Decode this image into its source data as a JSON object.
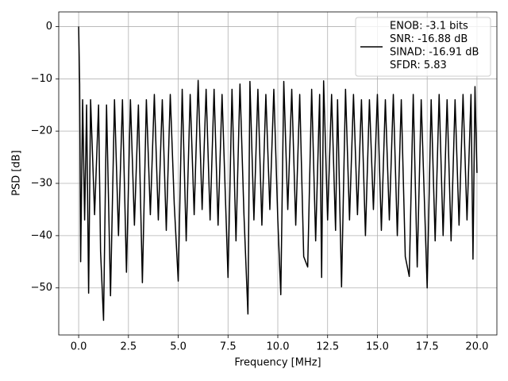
{
  "chart_data": {
    "type": "line",
    "xlabel": "Frequency [MHz]",
    "ylabel": "PSD [dB]",
    "xlim": [
      -1.0,
      21.0
    ],
    "ylim": [
      -59.0,
      2.8
    ],
    "xticks": [
      {
        "value": 0,
        "label": "0.0"
      },
      2.5,
      {
        "value": 5,
        "label": "5.0"
      },
      7.5,
      {
        "value": 10,
        "label": "10.0"
      },
      12.5,
      {
        "value": 15,
        "label": "15.0"
      },
      17.5,
      {
        "value": 20,
        "label": "20.0"
      }
    ],
    "yticks": [
      {
        "value": 0,
        "label": "0"
      },
      {
        "value": -10,
        "label": "−10"
      },
      {
        "value": -20,
        "label": "−20"
      },
      {
        "value": -30,
        "label": "−30"
      },
      {
        "value": -40,
        "label": "−40"
      },
      {
        "value": -50,
        "label": "−50"
      }
    ],
    "grid": true,
    "legend": "upper right",
    "x": [
      0,
      0.05,
      0.1,
      0.2,
      0.3,
      0.4,
      0.5,
      0.6,
      0.8,
      1.0,
      1.1,
      1.25,
      1.4,
      1.6,
      1.8,
      2.0,
      2.2,
      2.4,
      2.6,
      2.8,
      3.0,
      3.2,
      3.4,
      3.6,
      3.8,
      4.0,
      4.2,
      4.4,
      4.6,
      4.8,
      5.0,
      5.2,
      5.4,
      5.6,
      5.8,
      6.0,
      6.2,
      6.4,
      6.6,
      6.8,
      7.0,
      7.2,
      7.5,
      7.7,
      7.9,
      8.1,
      8.3,
      8.5,
      8.6,
      8.8,
      9.0,
      9.2,
      9.4,
      9.6,
      9.8,
      10.0,
      10.15,
      10.3,
      10.5,
      10.7,
      10.9,
      11.1,
      11.3,
      11.5,
      11.7,
      11.9,
      12.1,
      12.2,
      12.3,
      12.5,
      12.7,
      12.9,
      13.0,
      13.2,
      13.4,
      13.6,
      13.8,
      14.0,
      14.2,
      14.4,
      14.6,
      14.8,
      15.0,
      15.2,
      15.4,
      15.6,
      15.8,
      16.0,
      16.2,
      16.4,
      16.6,
      16.8,
      17.0,
      17.2,
      17.5,
      17.7,
      17.9,
      18.1,
      18.3,
      18.5,
      18.7,
      18.9,
      19.1,
      19.3,
      19.5,
      19.7,
      19.8,
      19.9,
      20.0
    ],
    "series": [
      {
        "name": [
          "ENOB: -3.1 bits",
          "SNR: -16.88 dB",
          "SINAD: -16.91 dB",
          "SFDR: 5.83"
        ],
        "color": "#000000",
        "values": [
          0,
          -11,
          -45,
          -14,
          -37,
          -15,
          -51,
          -14,
          -36,
          -15,
          -43,
          -56.2,
          -15,
          -51.5,
          -14,
          -40,
          -14,
          -47,
          -14,
          -38,
          -15,
          -49,
          -14,
          -36,
          -13,
          -37,
          -14,
          -39,
          -13,
          -34,
          -48.7,
          -12,
          -41,
          -13,
          -36,
          -10.3,
          -35,
          -12,
          -37,
          -12,
          -38,
          -13,
          -48,
          -12,
          -41,
          -11,
          -36,
          -55,
          -10.5,
          -37,
          -12,
          -38,
          -13,
          -35,
          -12,
          -37,
          -51.3,
          -10.5,
          -35,
          -12,
          -38,
          -13,
          -44,
          -46,
          -12,
          -41,
          -13,
          -48,
          -10.4,
          -37,
          -13,
          -39,
          -14,
          -49.8,
          -12,
          -37,
          -13,
          -36,
          -14,
          -40,
          -14,
          -35,
          -13,
          -39,
          -14,
          -37,
          -13,
          -40,
          -14,
          -44,
          -47.8,
          -13,
          -46,
          -14,
          -50,
          -14,
          -41,
          -13,
          -40,
          -14,
          -41,
          -14,
          -38,
          -13,
          -37,
          -13,
          -44.5,
          -11.5,
          -28
        ]
      }
    ]
  }
}
